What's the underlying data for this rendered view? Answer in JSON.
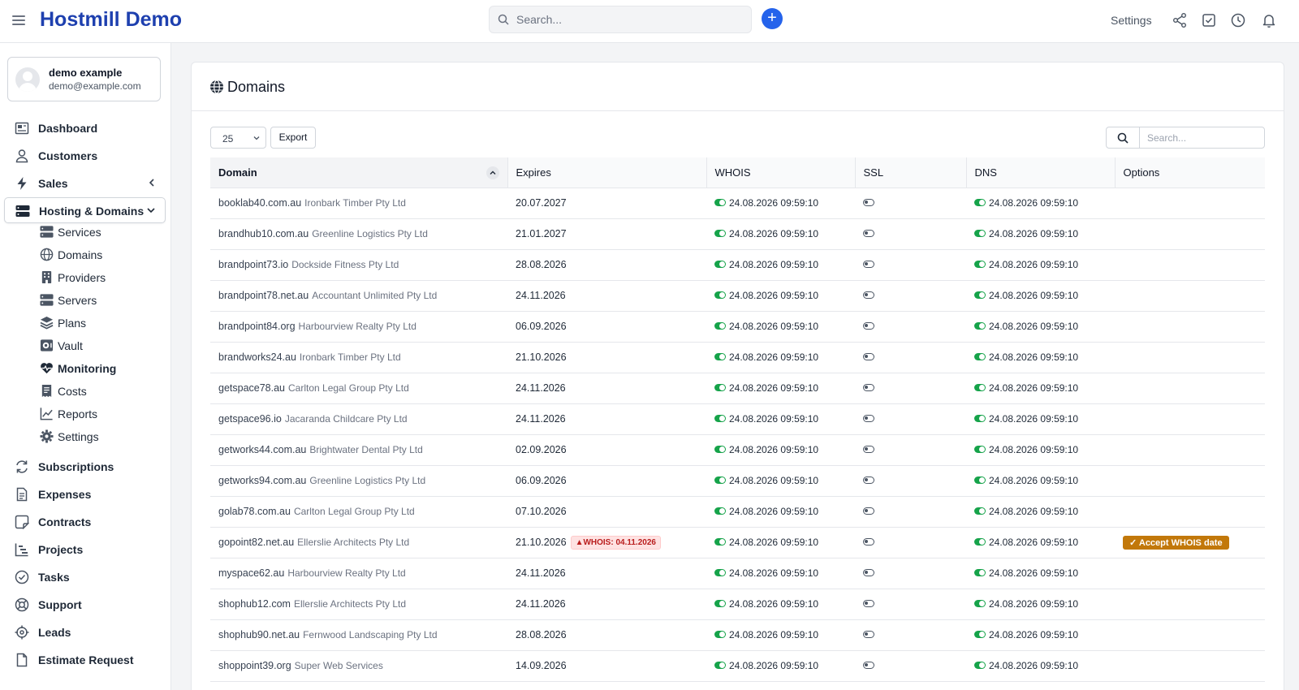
{
  "app": {
    "title": "Hostmill Demo"
  },
  "header": {
    "search_placeholder": "Search...",
    "settings_label": "Settings",
    "accent": "#2563eb",
    "icons": [
      "share-icon",
      "checkbox-icon",
      "clock-icon",
      "bell-icon"
    ]
  },
  "user": {
    "name": "demo example",
    "email": "demo@example.com"
  },
  "sidebar": {
    "items": [
      {
        "label": "Dashboard",
        "icon": "dashboard-icon"
      },
      {
        "label": "Customers",
        "icon": "user-icon"
      },
      {
        "label": "Sales",
        "icon": "bolt-icon"
      },
      {
        "label": "Hosting & Domains",
        "icon": "server-icon"
      },
      {
        "label": "Subscriptions",
        "icon": "refresh-icon"
      },
      {
        "label": "Expenses",
        "icon": "document-icon"
      },
      {
        "label": "Contracts",
        "icon": "contract-icon"
      },
      {
        "label": "Projects",
        "icon": "chart-bars-icon"
      },
      {
        "label": "Tasks",
        "icon": "check-circle-icon"
      },
      {
        "label": "Support",
        "icon": "lifebuoy-icon"
      },
      {
        "label": "Leads",
        "icon": "crosshair-icon"
      },
      {
        "label": "Estimate Request",
        "icon": "file-icon"
      }
    ],
    "hosting_sub": [
      {
        "label": "Services",
        "icon": "server-icon"
      },
      {
        "label": "Domains",
        "icon": "globe-icon"
      },
      {
        "label": "Providers",
        "icon": "building-icon"
      },
      {
        "label": "Servers",
        "icon": "server-icon"
      },
      {
        "label": "Plans",
        "icon": "layers-icon"
      },
      {
        "label": "Vault",
        "icon": "vault-icon"
      },
      {
        "label": "Monitoring",
        "icon": "heartbeat-icon"
      },
      {
        "label": "Costs",
        "icon": "receipt-icon"
      },
      {
        "label": "Reports",
        "icon": "line-chart-icon"
      },
      {
        "label": "Settings",
        "icon": "gear-icon"
      }
    ]
  },
  "main": {
    "title": "Domains",
    "page_size": "25",
    "export_label": "Export",
    "search_placeholder": "Search...",
    "columns": [
      "Domain",
      "Expires",
      "WHOIS",
      "SSL",
      "DNS",
      "Options"
    ],
    "status_color": "#16a34a",
    "rows": [
      {
        "domain": "booklab40.com.au",
        "customer": "Ironbark Timber Pty Ltd",
        "expires": "20.07.2027",
        "whois": "24.08.2026 09:59:10",
        "dns": "24.08.2026 09:59:10",
        "warning": "",
        "option": ""
      },
      {
        "domain": "brandhub10.com.au",
        "customer": "Greenline Logistics Pty Ltd",
        "expires": "21.01.2027",
        "whois": "24.08.2026 09:59:10",
        "dns": "24.08.2026 09:59:10",
        "warning": "",
        "option": ""
      },
      {
        "domain": "brandpoint73.io",
        "customer": "Dockside Fitness Pty Ltd",
        "expires": "28.08.2026",
        "whois": "24.08.2026 09:59:10",
        "dns": "24.08.2026 09:59:10",
        "warning": "",
        "option": ""
      },
      {
        "domain": "brandpoint78.net.au",
        "customer": "Accountant Unlimited Pty Ltd",
        "expires": "24.11.2026",
        "whois": "24.08.2026 09:59:10",
        "dns": "24.08.2026 09:59:10",
        "warning": "",
        "option": ""
      },
      {
        "domain": "brandpoint84.org",
        "customer": "Harbourview Realty Pty Ltd",
        "expires": "06.09.2026",
        "whois": "24.08.2026 09:59:10",
        "dns": "24.08.2026 09:59:10",
        "warning": "",
        "option": ""
      },
      {
        "domain": "brandworks24.au",
        "customer": "Ironbark Timber Pty Ltd",
        "expires": "21.10.2026",
        "whois": "24.08.2026 09:59:10",
        "dns": "24.08.2026 09:59:10",
        "warning": "",
        "option": ""
      },
      {
        "domain": "getspace78.au",
        "customer": "Carlton Legal Group Pty Ltd",
        "expires": "24.11.2026",
        "whois": "24.08.2026 09:59:10",
        "dns": "24.08.2026 09:59:10",
        "warning": "",
        "option": ""
      },
      {
        "domain": "getspace96.io",
        "customer": "Jacaranda Childcare Pty Ltd",
        "expires": "24.11.2026",
        "whois": "24.08.2026 09:59:10",
        "dns": "24.08.2026 09:59:10",
        "warning": "",
        "option": ""
      },
      {
        "domain": "getworks44.com.au",
        "customer": "Brightwater Dental Pty Ltd",
        "expires": "02.09.2026",
        "whois": "24.08.2026 09:59:10",
        "dns": "24.08.2026 09:59:10",
        "warning": "",
        "option": ""
      },
      {
        "domain": "getworks94.com.au",
        "customer": "Greenline Logistics Pty Ltd",
        "expires": "06.09.2026",
        "whois": "24.08.2026 09:59:10",
        "dns": "24.08.2026 09:59:10",
        "warning": "",
        "option": ""
      },
      {
        "domain": "golab78.com.au",
        "customer": "Carlton Legal Group Pty Ltd",
        "expires": "07.10.2026",
        "whois": "24.08.2026 09:59:10",
        "dns": "24.08.2026 09:59:10",
        "warning": "",
        "option": ""
      },
      {
        "domain": "gopoint82.net.au",
        "customer": "Ellerslie Architects Pty Ltd",
        "expires": "21.10.2026",
        "whois": "24.08.2026 09:59:10",
        "dns": "24.08.2026 09:59:10",
        "warning": "WHOIS: 04.11.2026",
        "option": "Accept WHOIS date"
      },
      {
        "domain": "myspace62.au",
        "customer": "Harbourview Realty Pty Ltd",
        "expires": "24.11.2026",
        "whois": "24.08.2026 09:59:10",
        "dns": "24.08.2026 09:59:10",
        "warning": "",
        "option": ""
      },
      {
        "domain": "shophub12.com",
        "customer": "Ellerslie Architects Pty Ltd",
        "expires": "24.11.2026",
        "whois": "24.08.2026 09:59:10",
        "dns": "24.08.2026 09:59:10",
        "warning": "",
        "option": ""
      },
      {
        "domain": "shophub90.net.au",
        "customer": "Fernwood Landscaping Pty Ltd",
        "expires": "28.08.2026",
        "whois": "24.08.2026 09:59:10",
        "dns": "24.08.2026 09:59:10",
        "warning": "",
        "option": ""
      },
      {
        "domain": "shoppoint39.org",
        "customer": "Super Web Services",
        "expires": "14.09.2026",
        "whois": "24.08.2026 09:59:10",
        "dns": "24.08.2026 09:59:10",
        "warning": "",
        "option": ""
      }
    ]
  }
}
